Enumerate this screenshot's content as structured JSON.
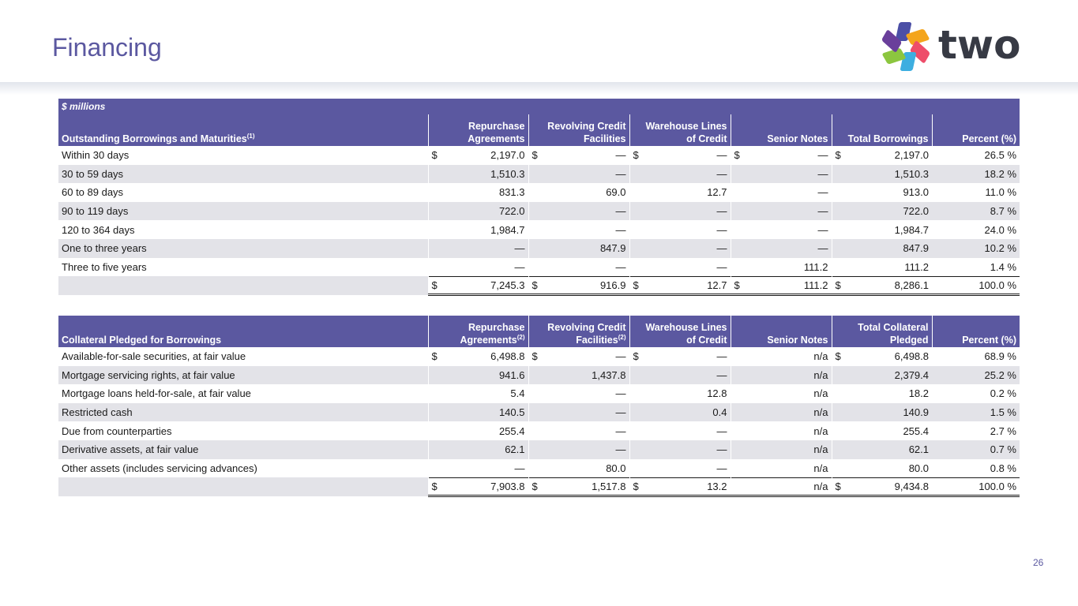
{
  "title": "Financing",
  "logo": {
    "text": "two",
    "colors": [
      "#4b4fa6",
      "#f4a51c",
      "#ee4d6a",
      "#3daee0",
      "#8cc63f",
      "#6a3f9b"
    ]
  },
  "page_number": "26",
  "borrowings": {
    "units_label": "$ millions",
    "headers": {
      "label": "Outstanding Borrowings and Maturities",
      "label_sup": "(1)",
      "repo_l1": "Repurchase",
      "repo_l2": "Agreements",
      "revolving_l1": "Revolving Credit",
      "revolving_l2": "Facilities",
      "warehouse_l1": "Warehouse Lines",
      "warehouse_l2": "of Credit",
      "senior": "Senior Notes",
      "total": "Total Borrowings",
      "percent": "Percent (%)"
    },
    "rows": [
      {
        "label": "Within 30 days",
        "repo": "2,197.0",
        "revolving": "—",
        "warehouse": "—",
        "senior": "—",
        "total": "2,197.0",
        "percent": "26.5 %"
      },
      {
        "label": "30 to 59 days",
        "repo": "1,510.3",
        "revolving": "—",
        "warehouse": "—",
        "senior": "—",
        "total": "1,510.3",
        "percent": "18.2 %"
      },
      {
        "label": "60 to 89 days",
        "repo": "831.3",
        "revolving": "69.0",
        "warehouse": "12.7",
        "senior": "—",
        "total": "913.0",
        "percent": "11.0 %"
      },
      {
        "label": "90 to 119 days",
        "repo": "722.0",
        "revolving": "—",
        "warehouse": "—",
        "senior": "—",
        "total": "722.0",
        "percent": "8.7 %"
      },
      {
        "label": "120 to 364 days",
        "repo": "1,984.7",
        "revolving": "—",
        "warehouse": "—",
        "senior": "—",
        "total": "1,984.7",
        "percent": "24.0 %"
      },
      {
        "label": "One to three years",
        "repo": "—",
        "revolving": "847.9",
        "warehouse": "—",
        "senior": "—",
        "total": "847.9",
        "percent": "10.2 %"
      },
      {
        "label": "Three to five years",
        "repo": "—",
        "revolving": "—",
        "warehouse": "—",
        "senior": "111.2",
        "total": "111.2",
        "percent": "1.4 %"
      }
    ],
    "total_row": {
      "repo": "7,245.3",
      "revolving": "916.9",
      "warehouse": "12.7",
      "senior": "111.2",
      "total": "8,286.1",
      "percent": "100.0 %"
    }
  },
  "collateral": {
    "headers": {
      "label": "Collateral Pledged for Borrowings",
      "repo_l1": "Repurchase",
      "repo_l2": "Agreements",
      "repo_sup": "(2)",
      "revolving_l1": "Revolving Credit",
      "revolving_l2": "Facilities",
      "revolving_sup": "(2)",
      "warehouse_l1": "Warehouse Lines",
      "warehouse_l2": "of Credit",
      "senior": "Senior Notes",
      "total_l1": "Total Collateral",
      "total_l2": "Pledged",
      "percent": "Percent (%)"
    },
    "rows": [
      {
        "label": "Available-for-sale securities, at fair value",
        "repo": "6,498.8",
        "revolving": "—",
        "warehouse": "—",
        "senior": "n/a",
        "total": "6,498.8",
        "percent": "68.9 %"
      },
      {
        "label": "Mortgage servicing rights, at fair value",
        "repo": "941.6",
        "revolving": "1,437.8",
        "warehouse": "—",
        "senior": "n/a",
        "total": "2,379.4",
        "percent": "25.2 %"
      },
      {
        "label": "Mortgage loans held-for-sale, at fair value",
        "repo": "5.4",
        "revolving": "—",
        "warehouse": "12.8",
        "senior": "n/a",
        "total": "18.2",
        "percent": "0.2 %"
      },
      {
        "label": "Restricted cash",
        "repo": "140.5",
        "revolving": "—",
        "warehouse": "0.4",
        "senior": "n/a",
        "total": "140.9",
        "percent": "1.5 %"
      },
      {
        "label": "Due from counterparties",
        "repo": "255.4",
        "revolving": "—",
        "warehouse": "—",
        "senior": "n/a",
        "total": "255.4",
        "percent": "2.7 %"
      },
      {
        "label": "Derivative assets, at fair value",
        "repo": "62.1",
        "revolving": "—",
        "warehouse": "—",
        "senior": "n/a",
        "total": "62.1",
        "percent": "0.7 %"
      },
      {
        "label": "Other assets (includes servicing advances)",
        "repo": "—",
        "revolving": "80.0",
        "warehouse": "—",
        "senior": "n/a",
        "total": "80.0",
        "percent": "0.8 %"
      }
    ],
    "total_row": {
      "repo": "7,903.8",
      "revolving": "1,517.8",
      "warehouse": "13.2",
      "senior": "n/a",
      "total": "9,434.8",
      "percent": "100.0 %"
    }
  },
  "currency_symbol": "$"
}
